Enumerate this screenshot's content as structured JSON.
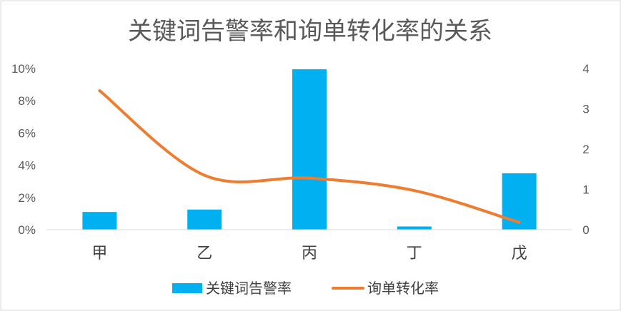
{
  "chart_data": {
    "type": "bar",
    "title": "关键词告警率和询单转化率的关系",
    "categories": [
      "甲",
      "乙",
      "丙",
      "丁",
      "戊"
    ],
    "series": [
      {
        "name": "关键词告警率",
        "type": "bar",
        "axis": "left",
        "values": [
          1.1,
          1.25,
          9.95,
          0.2,
          3.5
        ],
        "color": "#00B0F0"
      },
      {
        "name": "询单转化率",
        "type": "line",
        "axis": "right",
        "smooth": true,
        "values": [
          3.45,
          1.35,
          1.28,
          0.97,
          0.18
        ],
        "color": "#ED7D31"
      }
    ],
    "ylim": [
      0,
      10
    ],
    "y_ticks": [
      "0%",
      "2%",
      "4%",
      "6%",
      "8%",
      "10%"
    ],
    "y2lim": [
      0,
      4
    ],
    "y2_ticks": [
      "0",
      "1",
      "2",
      "3",
      "4"
    ],
    "legend_position": "bottom",
    "grid": false
  }
}
